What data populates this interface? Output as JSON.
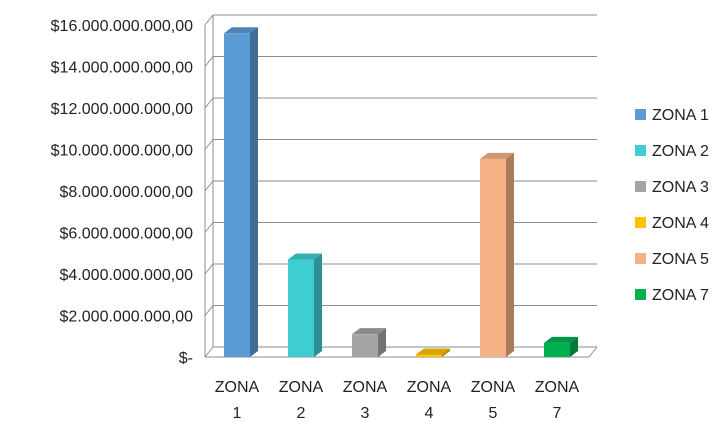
{
  "chart_data": {
    "type": "bar",
    "bar_style": "3d-column",
    "title": "",
    "xlabel": "",
    "ylabel": "",
    "categories": [
      "ZONA 1",
      "ZONA 2",
      "ZONA 3",
      "ZONA 4",
      "ZONA 5",
      "ZONA 7"
    ],
    "values": [
      15600000000,
      4700000000,
      1100000000,
      120000000,
      9550000000,
      680000000
    ],
    "colors": [
      "#5b9bd5",
      "#3ecdd0",
      "#a5a5a5",
      "#ffc000",
      "#f4b183",
      "#00b050"
    ],
    "ylim": [
      0,
      16000000000
    ],
    "y_ticks": [
      0,
      2000000000,
      4000000000,
      6000000000,
      8000000000,
      10000000000,
      12000000000,
      14000000000,
      16000000000
    ],
    "y_tick_labels": [
      "$-",
      "$2.000.000.000,00",
      "$4.000.000.000,00",
      "$6.000.000.000,00",
      "$8.000.000.000,00",
      "$10.000.000.000,00",
      "$12.000.000.000,00",
      "$14.000.000.000,00",
      "$16.000.000.000,00"
    ],
    "x_tick_labels": [
      [
        "ZONA",
        "1"
      ],
      [
        "ZONA",
        "2"
      ],
      [
        "ZONA",
        "3"
      ],
      [
        "ZONA",
        "4"
      ],
      [
        "ZONA",
        "5"
      ],
      [
        "ZONA",
        "7"
      ]
    ],
    "legend": {
      "placement": "right",
      "entries": [
        "ZONA 1",
        "ZONA 2",
        "ZONA 3",
        "ZONA 4",
        "ZONA 5",
        "ZONA 7"
      ]
    },
    "grid": true
  }
}
